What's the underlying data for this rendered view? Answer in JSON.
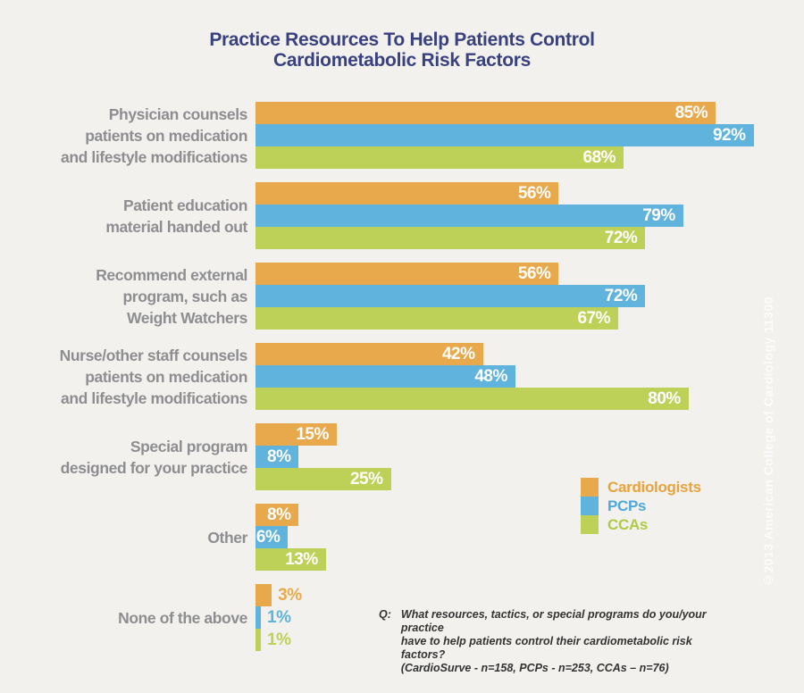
{
  "page": {
    "background": "#F2F1EE"
  },
  "title": {
    "line1": "Practice Resources To Help Patients Control",
    "line2": "Cardiometabolic Risk Factors",
    "color": "#3A417F"
  },
  "chart_data": {
    "type": "bar",
    "orientation": "horizontal",
    "title": "Practice Resources To Help Patients Control Cardiometabolic Risk Factors",
    "categories": [
      "Physician counsels patients on medication and lifestyle modifications",
      "Patient education material handed out",
      "Recommend external program, such as Weight Watchers",
      "Nurse/other staff counsels patients on medication and lifestyle modifications",
      "Special program designed for your practice",
      "Other",
      "None of the above"
    ],
    "category_label_lines": [
      [
        "Physician counsels",
        "patients on medication",
        "and lifestyle modifications"
      ],
      [
        "Patient education",
        "material handed out"
      ],
      [
        "Recommend external",
        "program, such as",
        "Weight Watchers"
      ],
      [
        "Nurse/other staff counsels",
        "patients on medication",
        "and lifestyle modifications"
      ],
      [
        "Special program",
        "designed for your practice"
      ],
      [
        "Other"
      ],
      [
        "None of the above"
      ]
    ],
    "series": [
      {
        "name": "Cardiologists",
        "color": "#E8A94C",
        "values": [
          85,
          56,
          56,
          42,
          15,
          8,
          3
        ]
      },
      {
        "name": "PCPs",
        "color": "#5FB3DC",
        "values": [
          92,
          79,
          72,
          48,
          8,
          6,
          1
        ]
      },
      {
        "name": "CCAs",
        "color": "#BDD158",
        "values": [
          68,
          72,
          67,
          80,
          25,
          13,
          1
        ]
      }
    ],
    "value_suffix": "%",
    "xlim": [
      0,
      100
    ],
    "grid": false,
    "value_labels": "at-bar-end",
    "legend_position": "right-middle"
  },
  "legend": {
    "items": [
      {
        "label": "Cardiologists",
        "color": "#E8A94C",
        "text_color": "#E8A33C"
      },
      {
        "label": "PCPs",
        "color": "#5FB3DC",
        "text_color": "#4FA8D9"
      },
      {
        "label": "CCAs",
        "color": "#BDD158",
        "text_color": "#AFCB44"
      }
    ]
  },
  "footnote": {
    "prefix": "Q:",
    "lines": [
      "What resources, tactics, or special programs do you/your practice",
      "have to help patients control their cardiometabolic risk factors?",
      "(CardioSurve - n=158, PCPs - n=253, CCAs – n=76)"
    ]
  },
  "watermark": "©2013 American College of Cardiology 11300"
}
